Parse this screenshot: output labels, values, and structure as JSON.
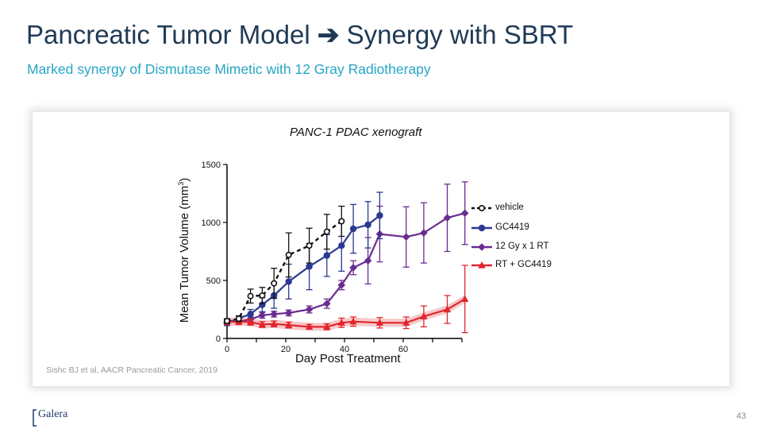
{
  "slide": {
    "title_main": "Pancreatic Tumor Model",
    "title_arrow": "➔",
    "title_end": "Synergy with SBRT",
    "subtitle": "Marked synergy of Dismutase Mimetic with 12 Gray Radiotherapy",
    "citation": "Sishc BJ et al, AACR Pancreatic Cancer, 2019",
    "page_number": "43",
    "logo_text": "Galera"
  },
  "chart_data": {
    "type": "line",
    "title": "PANC-1 PDAC xenograft",
    "xlabel": "Day Post Treatment",
    "ylabel": "Mean Tumor Volume (mm",
    "ylabel_sup": "3",
    "ylabel_end": ")",
    "xlim": [
      0,
      80
    ],
    "ylim": [
      0,
      1500
    ],
    "xticks": [
      0,
      20,
      40,
      60
    ],
    "yticks": [
      0,
      500,
      1000,
      1500
    ],
    "legend_position": "right",
    "series": [
      {
        "name": "vehicle",
        "color": "#111111",
        "marker": "open-circle",
        "line": "dashed",
        "x": [
          0,
          4,
          8,
          12,
          16,
          21,
          28,
          34,
          39
        ],
        "y": [
          150,
          170,
          365,
          370,
          475,
          720,
          800,
          920,
          1010
        ],
        "err": [
          20,
          25,
          60,
          70,
          130,
          190,
          150,
          150,
          130
        ]
      },
      {
        "name": "GC4419",
        "color": "#2b3990",
        "marker": "filled-circle",
        "line": "solid",
        "x": [
          0,
          8,
          12,
          16,
          21,
          28,
          34,
          39,
          43,
          48,
          52
        ],
        "y": [
          135,
          210,
          290,
          370,
          490,
          620,
          715,
          800,
          945,
          980,
          1060
        ],
        "err": [
          25,
          40,
          60,
          110,
          150,
          200,
          180,
          220,
          210,
          200,
          200
        ]
      },
      {
        "name": "12 Gy x 1 RT",
        "color": "#6a2c91",
        "marker": "diamond",
        "line": "solid",
        "x": [
          0,
          4,
          8,
          12,
          16,
          21,
          28,
          34,
          39,
          43,
          48,
          52,
          61,
          67,
          75,
          81
        ],
        "y": [
          140,
          145,
          165,
          200,
          210,
          220,
          250,
          300,
          460,
          610,
          670,
          900,
          875,
          910,
          1040,
          1080
        ],
        "err": [
          15,
          15,
          20,
          25,
          25,
          25,
          30,
          40,
          40,
          60,
          200,
          240,
          260,
          260,
          290,
          270
        ]
      },
      {
        "name": "RT + GC4419",
        "color": "#e0262c",
        "marker": "triangle",
        "line": "solid",
        "x": [
          0,
          4,
          8,
          12,
          16,
          21,
          28,
          34,
          39,
          43,
          52,
          61,
          67,
          75,
          81
        ],
        "y": [
          145,
          145,
          140,
          120,
          125,
          115,
          100,
          100,
          135,
          145,
          135,
          135,
          190,
          250,
          340
        ],
        "err": [
          25,
          25,
          25,
          25,
          25,
          25,
          20,
          25,
          40,
          40,
          45,
          50,
          90,
          120,
          290
        ]
      }
    ]
  }
}
